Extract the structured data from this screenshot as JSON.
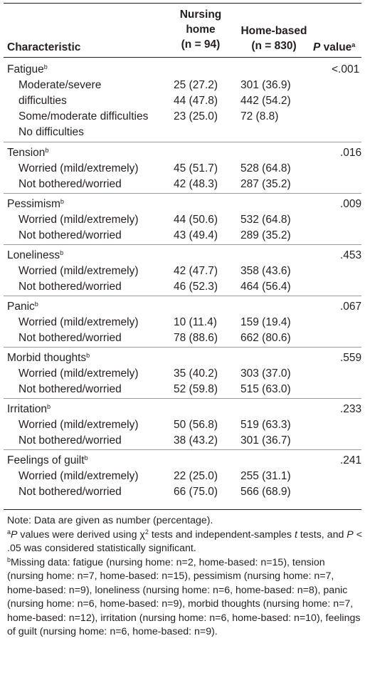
{
  "header": {
    "characteristic": "Characteristic",
    "nursing_home_line1": "Nursing",
    "nursing_home_line2": "home",
    "nursing_home_n": "(n = 94)",
    "home_based_line1": "Home-based",
    "home_based_n": "(n = 830)",
    "p_value_italic": "P",
    "p_value_rest": " value",
    "p_value_sup": "a"
  },
  "groups": [
    {
      "name": "Fatigue",
      "sup": "b",
      "p": "<.001",
      "rows": [
        {
          "label": "Moderate/severe",
          "nh": "25 (27.2)",
          "hb": "301 (36.9)"
        },
        {
          "label": "difficulties",
          "nh": "44 (47.8)",
          "hb": "442 (54.2)"
        },
        {
          "label": "Some/moderate difficulties",
          "nh": "23 (25.0)",
          "hb": "72 (8.8)"
        },
        {
          "label": "No difficulties",
          "nh": "",
          "hb": ""
        }
      ]
    },
    {
      "name": "Tension",
      "sup": "b",
      "p": ".016",
      "rows": [
        {
          "label": "Worried (mild/extremely)",
          "nh": "45 (51.7)",
          "hb": "528 (64.8)"
        },
        {
          "label": "Not bothered/worried",
          "nh": "42 (48.3)",
          "hb": "287 (35.2)"
        }
      ]
    },
    {
      "name": "Pessimism",
      "sup": "b",
      "p": ".009",
      "rows": [
        {
          "label": "Worried (mild/extremely)",
          "nh": "44 (50.6)",
          "hb": "532 (64.8)"
        },
        {
          "label": "Not bothered/worried",
          "nh": "43 (49.4)",
          "hb": "289 (35.2)"
        }
      ]
    },
    {
      "name": "Loneliness",
      "sup": "b",
      "p": ".453",
      "rows": [
        {
          "label": "Worried (mild/extremely)",
          "nh": "42 (47.7)",
          "hb": "358 (43.6)"
        },
        {
          "label": "Not bothered/worried",
          "nh": "46 (52.3)",
          "hb": "464 (56.4)"
        }
      ]
    },
    {
      "name": "Panic",
      "sup": "b",
      "p": ".067",
      "rows": [
        {
          "label": "Worried (mild/extremely)",
          "nh": "10 (11.4)",
          "hb": "159 (19.4)"
        },
        {
          "label": "Not bothered/worried",
          "nh": "78 (88.6)",
          "hb": "662 (80.6)"
        }
      ]
    },
    {
      "name": "Morbid thoughts",
      "sup": "b",
      "p": ".559",
      "rows": [
        {
          "label": "Worried (mild/extremely)",
          "nh": "35 (40.2)",
          "hb": "303 (37.0)"
        },
        {
          "label": "Not bothered/worried",
          "nh": "52 (59.8)",
          "hb": "515 (63.0)"
        }
      ]
    },
    {
      "name": "Irritation",
      "sup": "b",
      "p": ".233",
      "rows": [
        {
          "label": "Worried (mild/extremely)",
          "nh": "50 (56.8)",
          "hb": "519 (63.3)"
        },
        {
          "label": "Not bothered/worried",
          "nh": "38 (43.2)",
          "hb": "301 (36.7)"
        }
      ]
    },
    {
      "name": "Feelings of guilt",
      "sup": "b",
      "p": ".241",
      "rows": [
        {
          "label": "Worried (mild/extremely)",
          "nh": "22 (25.0)",
          "hb": "255 (31.1)"
        },
        {
          "label": "Not bothered/worried",
          "nh": "66 (75.0)",
          "hb": "566 (68.9)"
        }
      ]
    }
  ],
  "notes": {
    "note": "Note: Data are given as number (percentage).",
    "a_sup": "a",
    "a_italic_p": "P",
    "a_text1": " values were derived using χ",
    "a_chi_sup": "2",
    "a_text2": " tests and independent-samples ",
    "a_italic_t": "t",
    "a_text3": " tests, and ",
    "a_italic_p2": "P",
    "a_text4": " < .05 was considered statistically significant.",
    "b_sup": "b",
    "b_text": "Missing data: fatigue (nursing home: n=2, home-based: n=15), tension (nursing home: n=7, home-based: n=15), pessimism (nursing home: n=7, home-based: n=9), loneliness (nursing home: n=6, home-based: n=8), panic (nursing home: n=6, home-based: n=9), morbid thoughts (nursing home: n=7, home-based: n=12), irritation (nursing home: n=6, home-based: n=10), feelings of guilt (nursing home: n=6, home-based: n=9)."
  }
}
